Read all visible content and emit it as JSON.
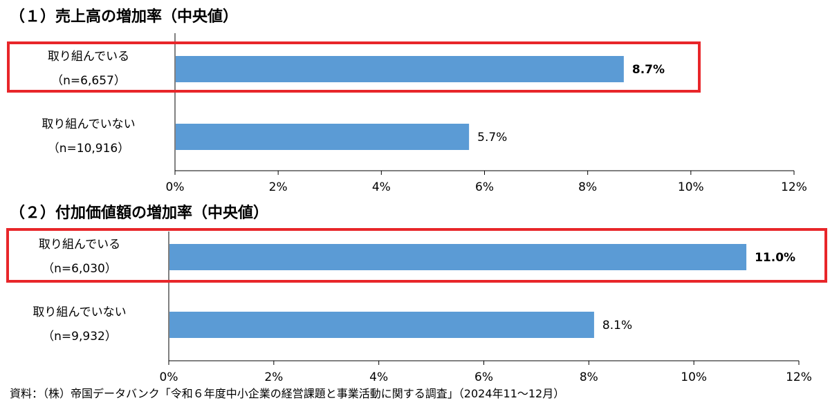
{
  "chart_data": [
    {
      "type": "bar",
      "orientation": "horizontal",
      "title": "（１）売上高の増加率（中央値）",
      "categories": [
        "取り組んでいる",
        "取り組んでいない"
      ],
      "sample_sizes": [
        "（n=6,657）",
        "（n=10,916）"
      ],
      "values": [
        8.7,
        5.7
      ],
      "value_labels": [
        "8.7%",
        "5.7%"
      ],
      "highlighted_category": "取り組んでいる",
      "xlim": [
        0,
        12
      ],
      "xticks": [
        "0%",
        "2%",
        "4%",
        "6%",
        "8%",
        "10%",
        "12%"
      ],
      "bar_color": "#5b9bd5",
      "highlight_color": "#e8262a"
    },
    {
      "type": "bar",
      "orientation": "horizontal",
      "title": "（２）付加価値額の増加率（中央値）",
      "categories": [
        "取り組んでいる",
        "取り組んでいない"
      ],
      "sample_sizes": [
        "（n=6,030）",
        "（n=9,932）"
      ],
      "values": [
        11.0,
        8.1
      ],
      "value_labels": [
        "11.0%",
        "8.1%"
      ],
      "highlighted_category": "取り組んでいる",
      "xlim": [
        0,
        12
      ],
      "xticks": [
        "0%",
        "2%",
        "4%",
        "6%",
        "8%",
        "10%",
        "12%"
      ],
      "bar_color": "#5b9bd5",
      "highlight_color": "#e8262a"
    }
  ],
  "source": "資料：（株）帝国データバンク「令和６年度中小企業の経営課題と事業活動に関する調査」（2024年11～12月）"
}
